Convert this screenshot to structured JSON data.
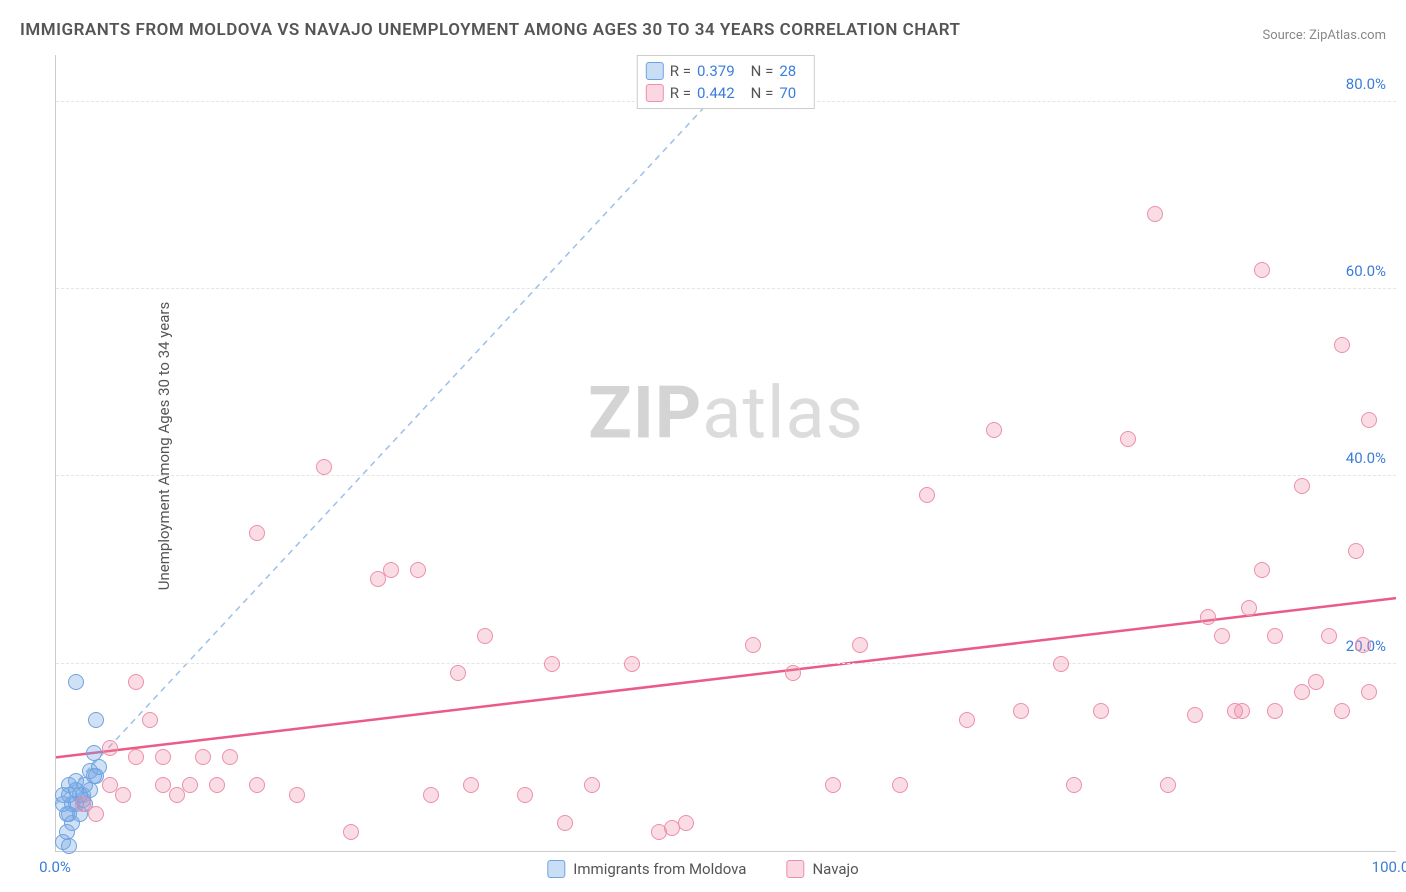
{
  "title": "IMMIGRANTS FROM MOLDOVA VS NAVAJO UNEMPLOYMENT AMONG AGES 30 TO 34 YEARS CORRELATION CHART",
  "source": "Source: ZipAtlas.com",
  "y_axis_label": "Unemployment Among Ages 30 to 34 years",
  "watermark_bold": "ZIP",
  "watermark_light": "atlas",
  "chart": {
    "type": "scatter",
    "xlim": [
      0,
      100
    ],
    "ylim": [
      0,
      85
    ],
    "x_ticks": [
      {
        "val": 0,
        "label": "0.0%"
      },
      {
        "val": 100,
        "label": "100.0%"
      }
    ],
    "y_ticks": [
      {
        "val": 20,
        "label": "20.0%"
      },
      {
        "val": 40,
        "label": "40.0%"
      },
      {
        "val": 60,
        "label": "60.0%"
      },
      {
        "val": 80,
        "label": "80.0%"
      }
    ],
    "background_color": "#ffffff",
    "grid_color": "#e5e5e5",
    "axis_color": "#cccccc",
    "tick_label_color": "#3b7dd8",
    "series": [
      {
        "name": "Immigrants from Moldova",
        "color_fill": "rgba(120,170,230,0.35)",
        "color_stroke": "#6fa3e0",
        "marker_size": 16,
        "R": "0.379",
        "N": "28",
        "trend": {
          "x1": 0,
          "y1": 5,
          "x2": 52,
          "y2": 85,
          "dash": "6,5",
          "width": 1.5,
          "color": "#9cc0e8"
        },
        "points": [
          [
            0.5,
            1
          ],
          [
            0.8,
            2
          ],
          [
            1,
            4
          ],
          [
            1.2,
            3
          ],
          [
            1.5,
            5
          ],
          [
            1.8,
            4
          ],
          [
            2,
            6
          ],
          [
            2.2,
            7
          ],
          [
            2.5,
            8.5
          ],
          [
            2.8,
            10.5
          ],
          [
            3,
            14
          ],
          [
            0.5,
            6
          ],
          [
            1,
            7
          ],
          [
            1.5,
            7.5
          ],
          [
            2,
            5.5
          ],
          [
            2.5,
            6.5
          ],
          [
            3,
            8
          ],
          [
            1.2,
            5
          ],
          [
            1.8,
            6
          ],
          [
            0.8,
            4
          ],
          [
            2.8,
            8
          ],
          [
            3.2,
            9
          ],
          [
            1.5,
            18
          ],
          [
            1,
            0.5
          ],
          [
            2.2,
            5
          ],
          [
            0.5,
            5
          ],
          [
            1,
            6
          ],
          [
            1.5,
            6.5
          ]
        ]
      },
      {
        "name": "Navajo",
        "color_fill": "rgba(240,140,170,0.30)",
        "color_stroke": "#ed8fab",
        "marker_size": 16,
        "R": "0.442",
        "N": "70",
        "trend": {
          "x1": 0,
          "y1": 10,
          "x2": 100,
          "y2": 27,
          "dash": "none",
          "width": 2.5,
          "color": "#ea5b87"
        },
        "points": [
          [
            2,
            5
          ],
          [
            3,
            4
          ],
          [
            4,
            7
          ],
          [
            4,
            11
          ],
          [
            5,
            6
          ],
          [
            6,
            18
          ],
          [
            6,
            10
          ],
          [
            7,
            14
          ],
          [
            8,
            7
          ],
          [
            8,
            10
          ],
          [
            9,
            6
          ],
          [
            10,
            7
          ],
          [
            11,
            10
          ],
          [
            12,
            7
          ],
          [
            13,
            10
          ],
          [
            15,
            7
          ],
          [
            15,
            34
          ],
          [
            18,
            6
          ],
          [
            20,
            41
          ],
          [
            22,
            2
          ],
          [
            24,
            29
          ],
          [
            25,
            30
          ],
          [
            27,
            30
          ],
          [
            28,
            6
          ],
          [
            30,
            19
          ],
          [
            31,
            7
          ],
          [
            32,
            23
          ],
          [
            35,
            6
          ],
          [
            37,
            20
          ],
          [
            38,
            3
          ],
          [
            40,
            7
          ],
          [
            43,
            20
          ],
          [
            45,
            2
          ],
          [
            46,
            2.5
          ],
          [
            47,
            3
          ],
          [
            52,
            22
          ],
          [
            55,
            19
          ],
          [
            58,
            7
          ],
          [
            60,
            22
          ],
          [
            63,
            7
          ],
          [
            65,
            38
          ],
          [
            68,
            14
          ],
          [
            70,
            45
          ],
          [
            72,
            15
          ],
          [
            75,
            20
          ],
          [
            76,
            7
          ],
          [
            78,
            15
          ],
          [
            80,
            44
          ],
          [
            82,
            68
          ],
          [
            83,
            7
          ],
          [
            85,
            14.5
          ],
          [
            86,
            25
          ],
          [
            87,
            23
          ],
          [
            88,
            15
          ],
          [
            88.5,
            15
          ],
          [
            89,
            26
          ],
          [
            90,
            30
          ],
          [
            90,
            62
          ],
          [
            91,
            15
          ],
          [
            91,
            23
          ],
          [
            93,
            17
          ],
          [
            93,
            39
          ],
          [
            94,
            18
          ],
          [
            95,
            23
          ],
          [
            96,
            15
          ],
          [
            96,
            54
          ],
          [
            97,
            32
          ],
          [
            97.5,
            22
          ],
          [
            98,
            17
          ],
          [
            98,
            46
          ]
        ]
      }
    ]
  },
  "legend_top": {
    "rows": [
      {
        "swatch": "blue",
        "r_label": "R =",
        "r_val": "0.379",
        "n_label": "N =",
        "n_val": "28"
      },
      {
        "swatch": "pink",
        "r_label": "R =",
        "r_val": "0.442",
        "n_label": "N =",
        "n_val": "70"
      }
    ]
  },
  "legend_bottom": [
    {
      "swatch": "blue",
      "label": "Immigrants from Moldova"
    },
    {
      "swatch": "pink",
      "label": "Navajo"
    }
  ]
}
